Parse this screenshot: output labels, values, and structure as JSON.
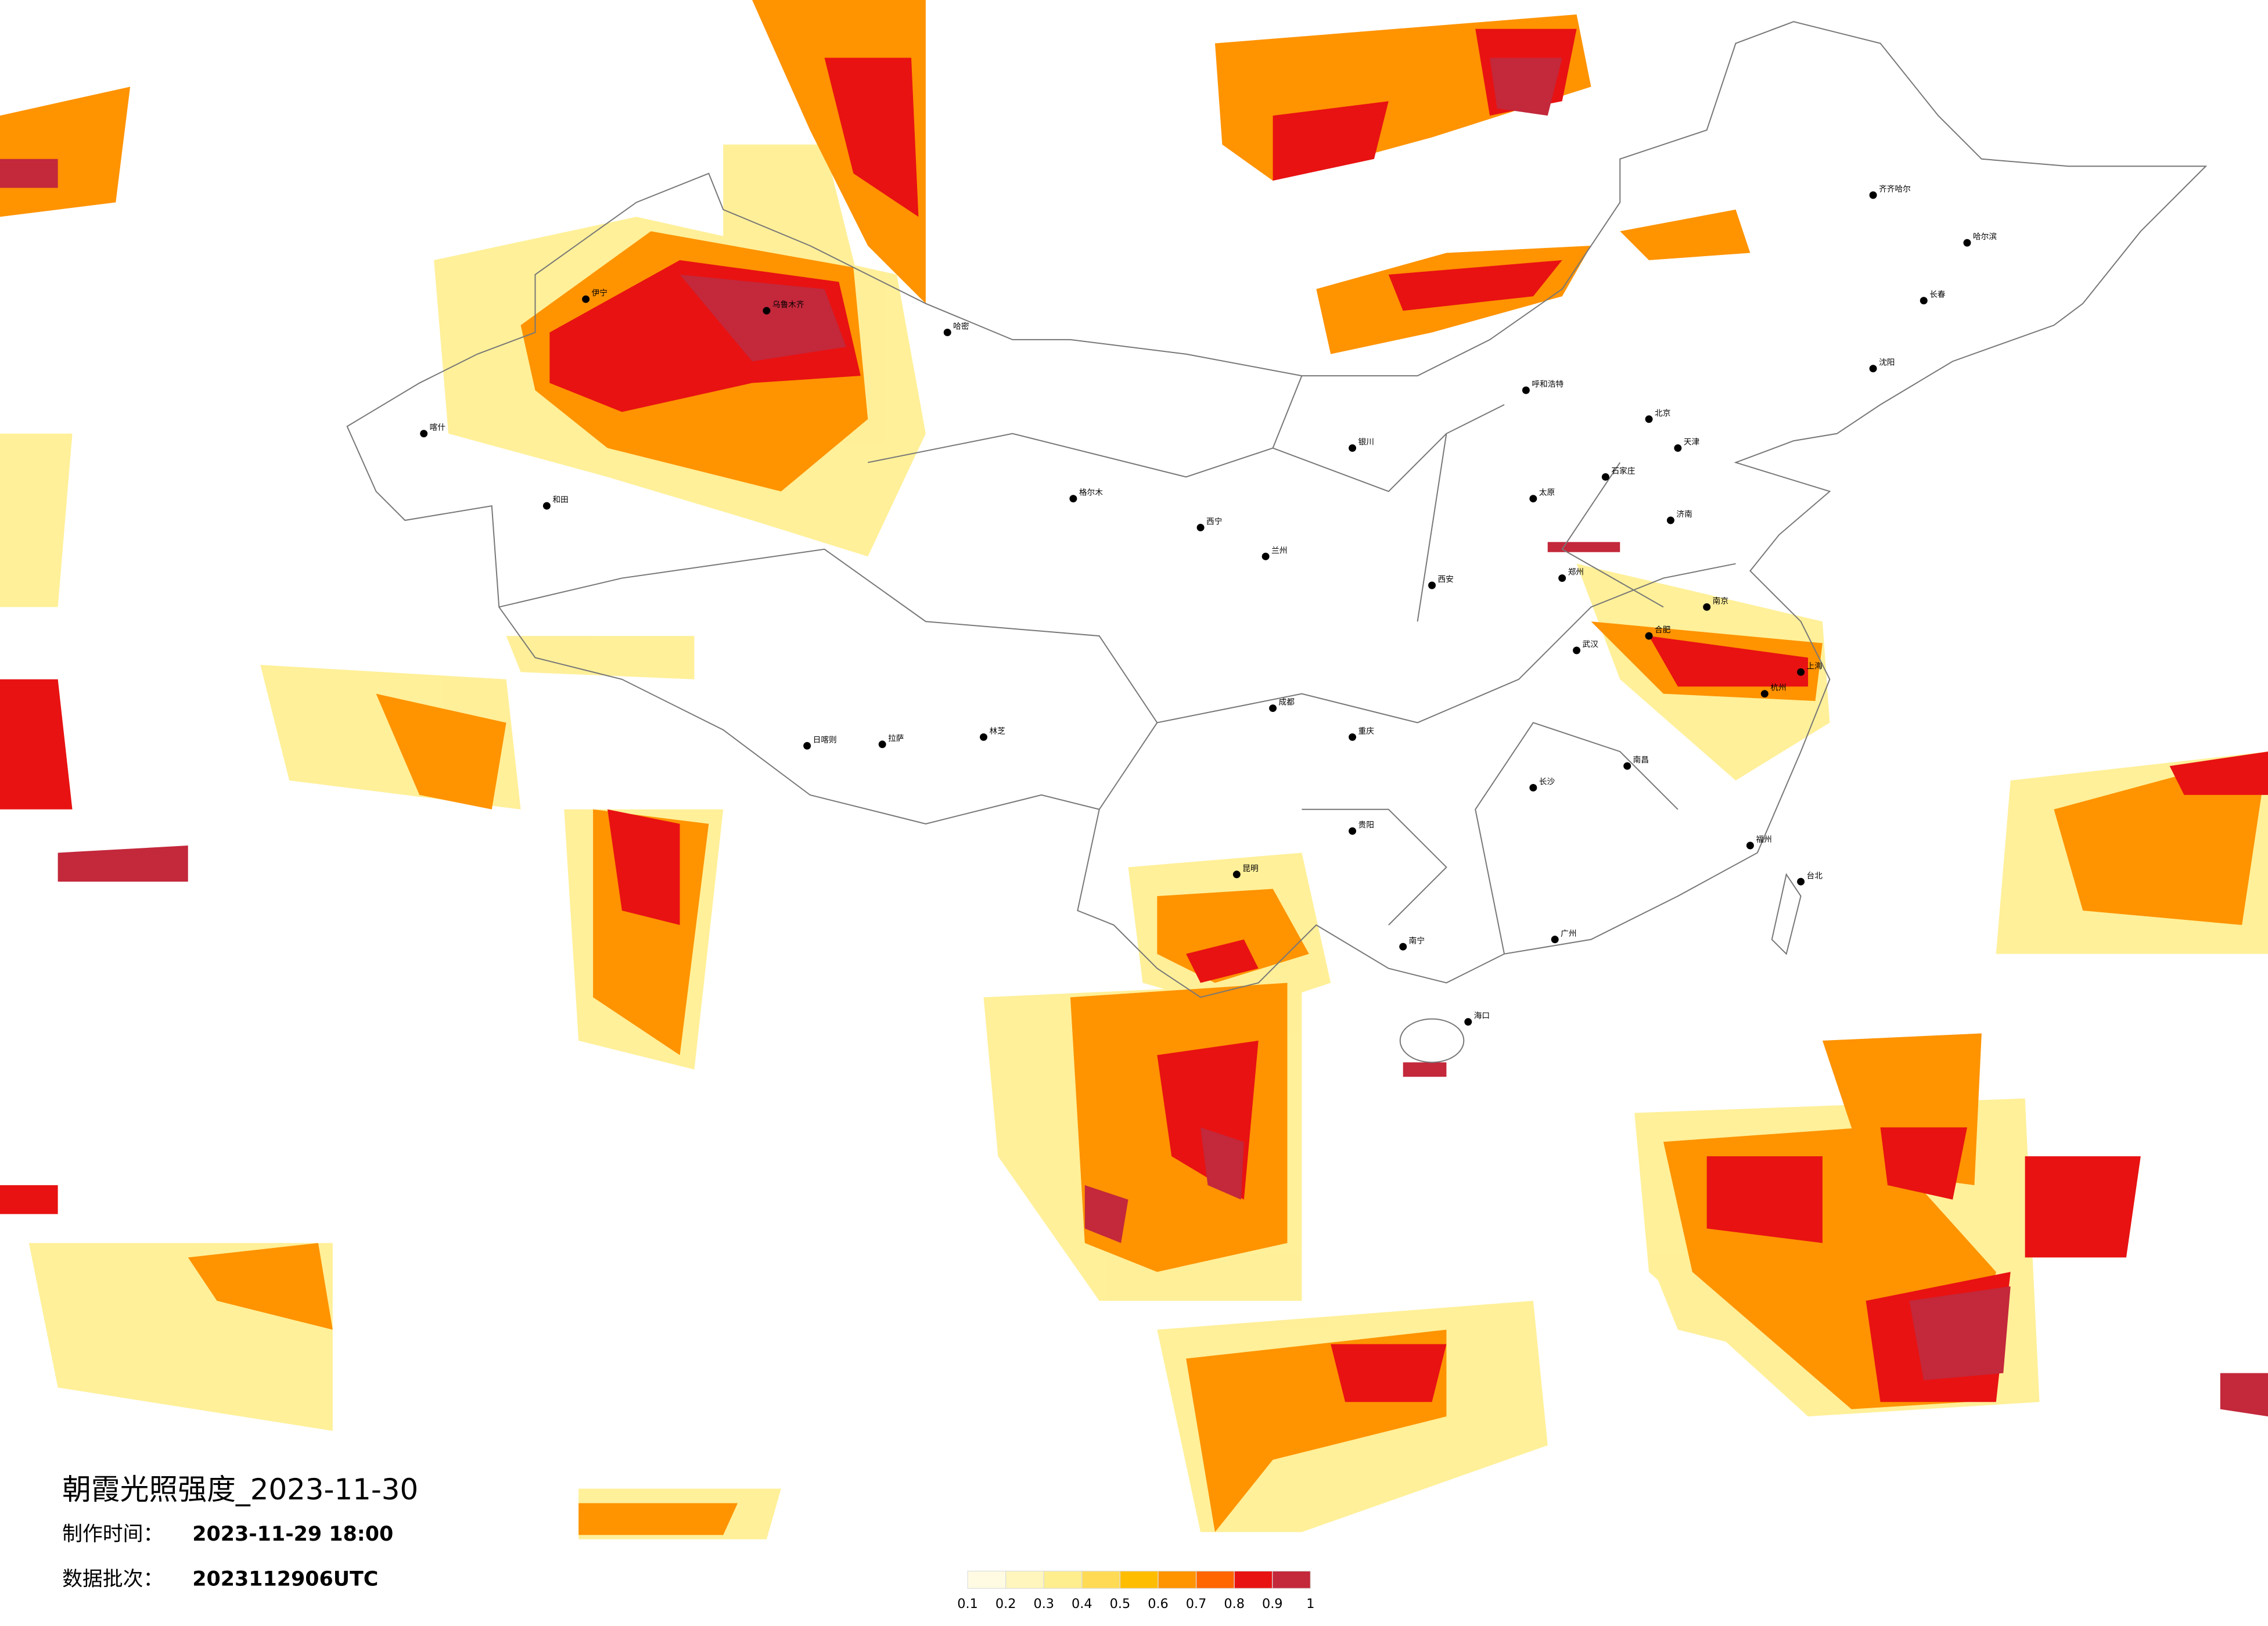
{
  "header": {
    "title": "朝霞光照强度_2023-11-30",
    "made_label": "制作时间：",
    "made_time": "2023-11-29 18:00",
    "batch_label": "数据批次：",
    "batch": "2023112906UTC"
  },
  "legend": {
    "ticks": [
      0.1,
      0.2,
      0.3,
      0.4,
      0.5,
      0.6,
      0.7,
      0.8,
      0.9,
      1
    ],
    "colors": [
      "#fffbe3",
      "#fff6bd",
      "#ffee8e",
      "#ffdb55",
      "#ffbd00",
      "#ff9300",
      "#ff6600",
      "#e81212",
      "#c3283b"
    ]
  },
  "cities": [
    "哈尔滨",
    "齐齐哈尔",
    "长春",
    "沈阳",
    "呼和浩特",
    "北京",
    "天津",
    "石家庄",
    "太原",
    "济南",
    "郑州",
    "西安",
    "银川",
    "兰州",
    "西宁",
    "成都",
    "重庆",
    "武汉",
    "南京",
    "上海",
    "杭州",
    "合肥",
    "南昌",
    "长沙",
    "福州",
    "台北",
    "广州",
    "南宁",
    "海口",
    "贵阳",
    "昆明",
    "拉萨",
    "乌鲁木齐",
    "喀什",
    "和田",
    "伊宁",
    "格尔木",
    "日喀则",
    "林芝",
    "哈密"
  ]
}
